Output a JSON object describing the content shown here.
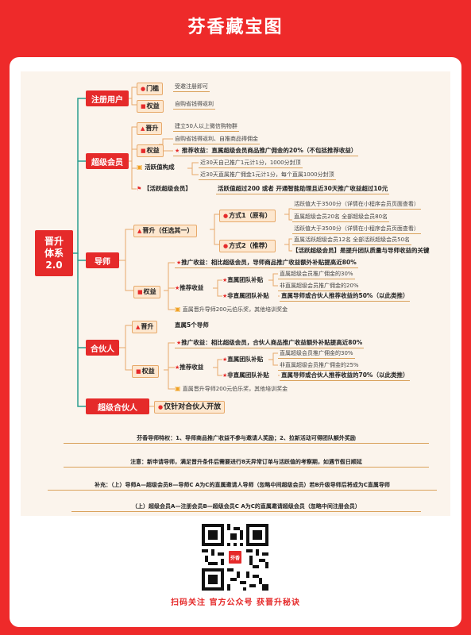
{
  "page": {
    "title": "芬香藏宝图"
  },
  "root": {
    "line1": "晋升",
    "line2": "体系",
    "line3": "2.0"
  },
  "reg": {
    "label": "注册用户",
    "door": "门槛",
    "door_text": "受邀注册即可",
    "rights": "权益",
    "rights_text": "自购省钱得返利"
  },
  "super": {
    "label": "超级会员",
    "promote": "晋升",
    "promote_text": "建立50人以上微信购物群",
    "rights": "权益",
    "rights_text1": "自购省钱得返利、自推商品得佣金",
    "rights_text2": "推荐收益：直属超级会员商品推广佣金的20%（不包括推荐收益）",
    "active": "活跃值构成",
    "active_text1": "近30天自己推广1元计1分，1000分封顶",
    "active_text2": "近30天直属推广佣金1元计1分，每个直属1000分封顶",
    "active_super": "【活跃超级会员】",
    "active_super_text": "活跃值超过200 或者 开通智能助理且近30天推广收益超过10元"
  },
  "mentor": {
    "label": "导师",
    "promote": "晋升（任选其一）",
    "way1": "方式1（原有）",
    "way1_text1": "活跃值大于3500分（详情在小程序会员页面查看）",
    "way1_text2": "直属超级会员20名  全部超级会员80名",
    "way2": "方式2（推荐）",
    "way2_text1": "活跃值大于3500分（详情在小程序会员页面查看）",
    "way2_text2": "直属活跃超级会员12名  全部活跃超级会员50名",
    "way2_note": "【活跃超级会员】是提升团队质量与导师收益的关键",
    "rights": "权益",
    "r1": "推广收益：相比超级会员，导师商品推广收益额外补贴提高近80%",
    "r2": "推荐收益",
    "r2a": "直属团队补贴",
    "r2a1": "直属超级会员推广佣金的30%",
    "r2a2": "非直属超级会员推广佣金的20%",
    "r2b": "非直属团队补贴",
    "r2b1": "直属导师或合伙人推荐收益的50%（以此类推）",
    "r3": "直属晋升导师200元伯乐奖，其他培训奖金"
  },
  "partner": {
    "label": "合伙人",
    "promote": "晋升",
    "promote_text": "直属5个导师",
    "rights": "权益",
    "r1": "推广收益：相比超级会员，合伙人商品推广收益额外补贴提高近80%",
    "r2": "推荐收益",
    "r2a": "直属团队补贴",
    "r2a1": "直属超级会员推广佣金的30%",
    "r2a2": "非直属超级会员推广佣金的25%",
    "r2b": "非直属团队补贴",
    "r2b1": "直属导师或合伙人推荐收益的70%（以此类推）",
    "r3": "直属晋升导师200元伯乐奖，其他培训奖金"
  },
  "super_partner": {
    "label": "超级合伙人",
    "text": "仅针对合伙人开放"
  },
  "notes": {
    "n1": "芬香导师特权：1、导师商品推广收益不参与邀请人奖励；2、拉新活动可得团队额外奖励",
    "n2": "注意：新申请导师，满足晋升条件后需要进行8天异常订单与活跃值的考察期，如遇节假日顺延",
    "n3": "补充：（上）导师A—超级会员B—导师C    A为C的直属邀请人导师（忽略中间超级会员）若B升级导师后将成为C直属导师",
    "n4": "（上）超级会员A—注册会员B—超级会员C    A为C的直属邀请超级会员（忽略中间注册会员）"
  },
  "qr": {
    "logo": "芬香"
  },
  "footer": {
    "caption": "扫码关注 官方公众号 获晋升秘诀"
  },
  "colors": {
    "brand_red": "#e52a2a",
    "bg_red": "#ee2a2a",
    "line_teal": "#2a9d8f",
    "sub_fill": "#fde7cf"
  }
}
